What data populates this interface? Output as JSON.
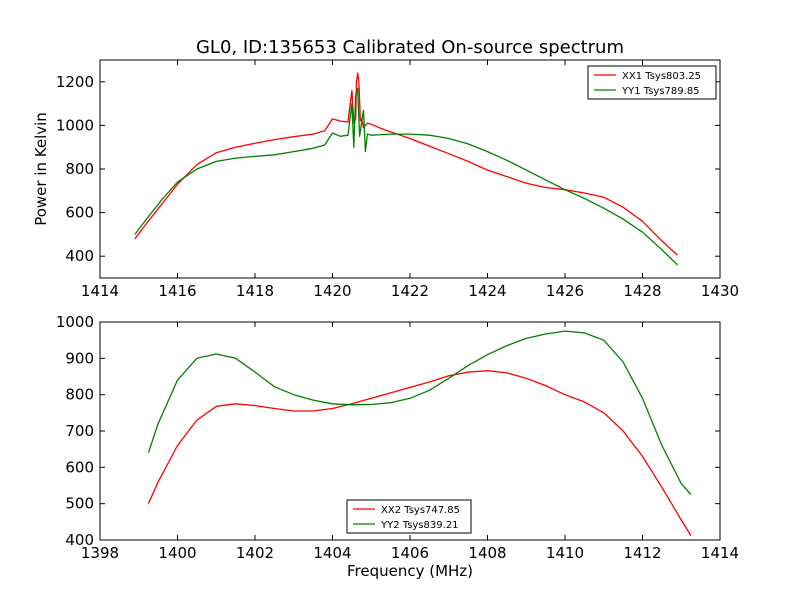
{
  "figure": {
    "title": "GL0, ID:135653 Calibrated On-source spectrum",
    "xlabel": "Frequency (MHz)"
  },
  "chart_data": [
    {
      "type": "line",
      "title": "GL0, ID:135653 Calibrated On-source spectrum",
      "xlabel": "",
      "ylabel": "Power in Kelvin",
      "xlim": [
        1414,
        1430
      ],
      "ylim": [
        300,
        1300
      ],
      "xticks": [
        1414,
        1416,
        1418,
        1420,
        1422,
        1424,
        1426,
        1428,
        1430
      ],
      "yticks": [
        400,
        600,
        800,
        1000,
        1200
      ],
      "grid": false,
      "legend_position": "top-right",
      "series": [
        {
          "name": "XX1 Tsys803.25",
          "color": "#ff0000",
          "x": [
            1414.9,
            1415.2,
            1415.6,
            1416.0,
            1416.5,
            1417.0,
            1417.5,
            1418.0,
            1418.5,
            1419.0,
            1419.5,
            1419.8,
            1420.0,
            1420.2,
            1420.4,
            1420.5,
            1420.55,
            1420.6,
            1420.62,
            1420.65,
            1420.68,
            1420.72,
            1420.75,
            1420.8,
            1420.9,
            1421.0,
            1421.2,
            1421.5,
            1422.0,
            1422.5,
            1423.0,
            1423.5,
            1424.0,
            1424.5,
            1425.0,
            1425.5,
            1426.0,
            1426.5,
            1427.0,
            1427.5,
            1428.0,
            1428.5,
            1428.9
          ],
          "y": [
            480,
            550,
            640,
            730,
            820,
            875,
            900,
            918,
            935,
            948,
            960,
            975,
            1030,
            1020,
            1015,
            1160,
            1010,
            1030,
            1200,
            1240,
            1200,
            1020,
            1030,
            990,
            1010,
            1005,
            990,
            970,
            940,
            905,
            870,
            835,
            795,
            765,
            735,
            715,
            705,
            690,
            670,
            625,
            560,
            470,
            405
          ]
        },
        {
          "name": "YY1 Tsys789.85",
          "color": "#008000",
          "x": [
            1414.9,
            1415.2,
            1415.6,
            1416.0,
            1416.5,
            1417.0,
            1417.5,
            1418.0,
            1418.5,
            1419.0,
            1419.5,
            1419.8,
            1420.0,
            1420.2,
            1420.4,
            1420.5,
            1420.55,
            1420.6,
            1420.65,
            1420.7,
            1420.8,
            1420.85,
            1420.9,
            1421.0,
            1421.5,
            1422.0,
            1422.5,
            1423.0,
            1423.5,
            1424.0,
            1424.5,
            1425.0,
            1425.5,
            1426.0,
            1426.5,
            1427.0,
            1427.5,
            1428.0,
            1428.5,
            1428.9
          ],
          "y": [
            500,
            570,
            660,
            740,
            800,
            835,
            850,
            858,
            865,
            880,
            895,
            910,
            965,
            950,
            955,
            1100,
            900,
            1140,
            1170,
            950,
            1070,
            880,
            960,
            955,
            960,
            960,
            955,
            940,
            915,
            880,
            840,
            795,
            750,
            705,
            665,
            620,
            570,
            510,
            430,
            360
          ]
        }
      ]
    },
    {
      "type": "line",
      "title": "",
      "xlabel": "Frequency (MHz)",
      "ylabel": "",
      "xlim": [
        1398,
        1414
      ],
      "ylim": [
        400,
        1000
      ],
      "xticks": [
        1398,
        1400,
        1402,
        1404,
        1406,
        1408,
        1410,
        1412,
        1414
      ],
      "yticks": [
        400,
        500,
        600,
        700,
        800,
        900,
        1000
      ],
      "grid": false,
      "legend_position": "bottom-center",
      "series": [
        {
          "name": "XX2 Tsys747.85",
          "color": "#ff0000",
          "x": [
            1399.25,
            1399.5,
            1400.0,
            1400.5,
            1401.0,
            1401.5,
            1402.0,
            1402.5,
            1403.0,
            1403.5,
            1404.0,
            1404.5,
            1405.0,
            1405.5,
            1406.0,
            1406.5,
            1407.0,
            1407.5,
            1408.0,
            1408.5,
            1409.0,
            1409.5,
            1410.0,
            1410.5,
            1411.0,
            1411.5,
            1412.0,
            1412.5,
            1413.0,
            1413.25
          ],
          "y": [
            500,
            560,
            660,
            730,
            768,
            775,
            770,
            762,
            755,
            755,
            762,
            775,
            790,
            805,
            820,
            835,
            852,
            862,
            866,
            860,
            845,
            825,
            800,
            780,
            750,
            700,
            630,
            545,
            455,
            412
          ]
        },
        {
          "name": "YY2 Tsys839.21",
          "color": "#008000",
          "x": [
            1399.25,
            1399.5,
            1400.0,
            1400.5,
            1401.0,
            1401.5,
            1402.0,
            1402.5,
            1403.0,
            1403.5,
            1404.0,
            1404.5,
            1405.0,
            1405.5,
            1406.0,
            1406.5,
            1407.0,
            1407.5,
            1408.0,
            1408.5,
            1409.0,
            1409.5,
            1410.0,
            1410.5,
            1411.0,
            1411.5,
            1412.0,
            1412.5,
            1413.0,
            1413.25
          ],
          "y": [
            640,
            720,
            840,
            900,
            912,
            900,
            862,
            822,
            800,
            785,
            775,
            772,
            773,
            778,
            790,
            812,
            845,
            880,
            910,
            935,
            955,
            967,
            975,
            970,
            950,
            890,
            790,
            660,
            555,
            525
          ]
        }
      ]
    }
  ]
}
